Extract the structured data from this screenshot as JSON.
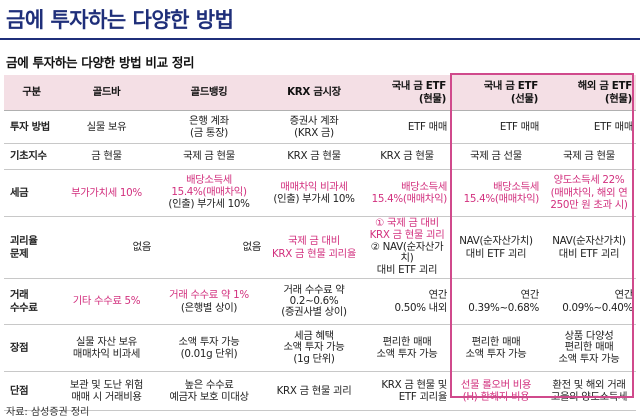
{
  "page_title": "금에 투자하는 다양한 방법",
  "table_title": "금에 투자하는 다양한 방법 비교 정리",
  "headers": [
    "구분",
    "골드바",
    "골드뱅킹",
    "KRX 금시장",
    "국내 금 ETF\n(현물)",
    "국내 금 ETF\n(선물)",
    "해외 금 ETF\n(현물)"
  ],
  "rows": [
    {
      "label": "투자 방법",
      "cells": [
        "실물 보유",
        "은행 계좌\n(금 통장)",
        "증권사 계좌\n(KRX 금)",
        "ETF 매매",
        "ETF 매매",
        "ETF 매매"
      ]
    },
    {
      "label": "기초지수",
      "cells": [
        "금 현물",
        "국제 금 현물",
        "KRX 금 현물",
        "KRX 금 현물",
        "국제 금 선물",
        "국제 금 현물"
      ]
    },
    {
      "label": "세금",
      "cells": [
        "부가가치세 10%",
        "배당소득세\n15.4%(매매차익)\n(인출) 부가세 10%",
        "매매차익 비과세\n(인출) 부가세 10%",
        "배당소득세\n15.4%(매매차익)",
        "배당소득세\n15.4%(매매차익)",
        "양도소득세 22%\n(매매차익, 해외 연\n250만 원 초과 시)"
      ]
    },
    {
      "label": "괴리율\n문제",
      "cells": [
        "없음",
        "없음",
        "국제 금 대비\nKRX 금 현물 괴리율",
        "① 국제 금 대비\nKRX 금 현물 괴리\n② NAV(순자산가치)\n대비 ETF 괴리",
        "NAV(순자산가치)\n대비 ETF 괴리",
        "NAV(순자산가치)\n대비 ETF 괴리"
      ]
    },
    {
      "label": "거래\n수수료",
      "cells": [
        "기타 수수료 5%",
        "거래 수수료 약 1%\n(은행별 상이)",
        "거래 수수료 약\n0.2~0.6%\n(증권사별 상이)",
        "연간\n0.50% 내외",
        "연간\n0.39%~0.68%",
        "연간\n0.09%~0.40%"
      ]
    },
    {
      "label": "장점",
      "cells": [
        "실물 자산 보유\n매매차익 비과세",
        "소액 투자 가능\n(0.01g 단위)",
        "세금 혜택\n소액 투자 가능\n(1g 단위)",
        "편리한 매매\n소액 투자 가능",
        "편리한 매매\n소액 투자 가능",
        "상품 다양성\n편리한 매매\n소액 투자 가능"
      ]
    },
    {
      "label": "단점",
      "cells": [
        "보관 및 도난 위험\n매매 시 거래비용",
        "높은 수수료\n예금자 보호 미대상",
        "KRX 금 현물 괴리",
        "KRX 금 현물 및\nETF 괴리율",
        "선물 롤오버 비용\n(H) 환헤지 비용",
        "환전 및 해외 거래\n고율의 양도소득세"
      ]
    }
  ],
  "source": "자료: 삼성증권 정리"
}
